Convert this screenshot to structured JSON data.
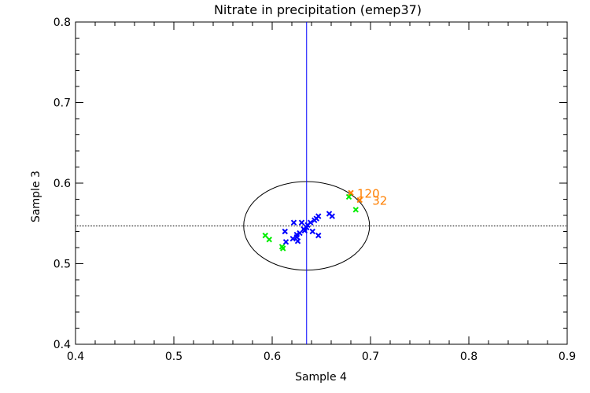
{
  "chart_data": {
    "type": "scatter",
    "title": "Nitrate in precipitation (emep37)",
    "xlabel": "Sample 4",
    "ylabel": "Sample 3",
    "xlim": [
      0.4,
      0.9
    ],
    "ylim": [
      0.4,
      0.8
    ],
    "xticks": [
      "0.4",
      "0.5",
      "0.6",
      "0.7",
      "0.8",
      "0.9"
    ],
    "yticks": [
      "0.4",
      "0.5",
      "0.6",
      "0.7",
      "0.8"
    ],
    "vline": 0.635,
    "hline": 0.547,
    "ellipse": {
      "cx": 0.635,
      "cy": 0.547,
      "rx": 0.064,
      "ry": 0.055
    },
    "series": [
      {
        "name": "blue",
        "color": "#0000ff",
        "points": [
          [
            0.658,
            0.562
          ],
          [
            0.661,
            0.559
          ],
          [
            0.647,
            0.559
          ],
          [
            0.645,
            0.556
          ],
          [
            0.643,
            0.554
          ],
          [
            0.639,
            0.551
          ],
          [
            0.636,
            0.548
          ],
          [
            0.635,
            0.545
          ],
          [
            0.622,
            0.551
          ],
          [
            0.63,
            0.551
          ],
          [
            0.632,
            0.543
          ],
          [
            0.633,
            0.541
          ],
          [
            0.613,
            0.54
          ],
          [
            0.628,
            0.538
          ],
          [
            0.641,
            0.54
          ],
          [
            0.647,
            0.535
          ],
          [
            0.625,
            0.536
          ],
          [
            0.625,
            0.533
          ],
          [
            0.621,
            0.531
          ],
          [
            0.626,
            0.528
          ],
          [
            0.614,
            0.527
          ]
        ]
      },
      {
        "name": "green",
        "color": "#00ee00",
        "points": [
          [
            0.678,
            0.583
          ],
          [
            0.685,
            0.567
          ],
          [
            0.593,
            0.535
          ],
          [
            0.597,
            0.53
          ],
          [
            0.611,
            0.519
          ],
          [
            0.61,
            0.521
          ]
        ]
      },
      {
        "name": "orange",
        "color": "#ff7f00",
        "points": [
          [
            0.68,
            0.588
          ],
          [
            0.689,
            0.579
          ]
        ],
        "labels": [
          "120",
          "32"
        ]
      }
    ]
  }
}
